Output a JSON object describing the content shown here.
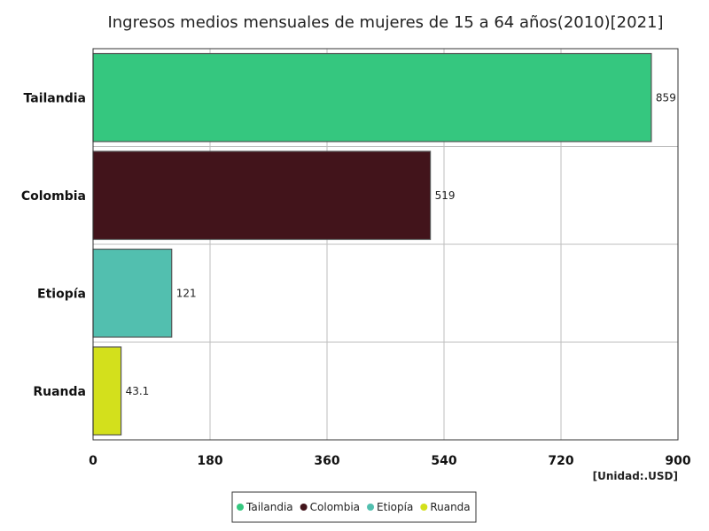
{
  "chart_data": {
    "type": "bar",
    "orientation": "horizontal",
    "title": "Ingresos medios mensuales de mujeres de 15 a 64 años(2010)[2021]",
    "unit": "[Unidad:.USD]",
    "categories": [
      "Tailandia",
      "Colombia",
      "Etiopía",
      "Ruanda"
    ],
    "values": [
      859,
      519,
      121,
      43.1
    ],
    "value_labels": [
      "859",
      "519",
      "121",
      "43.1"
    ],
    "colors": [
      "#35c77f",
      "#42141b",
      "#52bfaf",
      "#d3e01c"
    ],
    "xlim": [
      0,
      900
    ],
    "xticks": [
      0,
      180,
      360,
      540,
      720,
      900
    ],
    "grid": true,
    "legend_position": "bottom-center",
    "legend": [
      "Tailandia",
      "Colombia",
      "Etiopía",
      "Ruanda"
    ]
  }
}
